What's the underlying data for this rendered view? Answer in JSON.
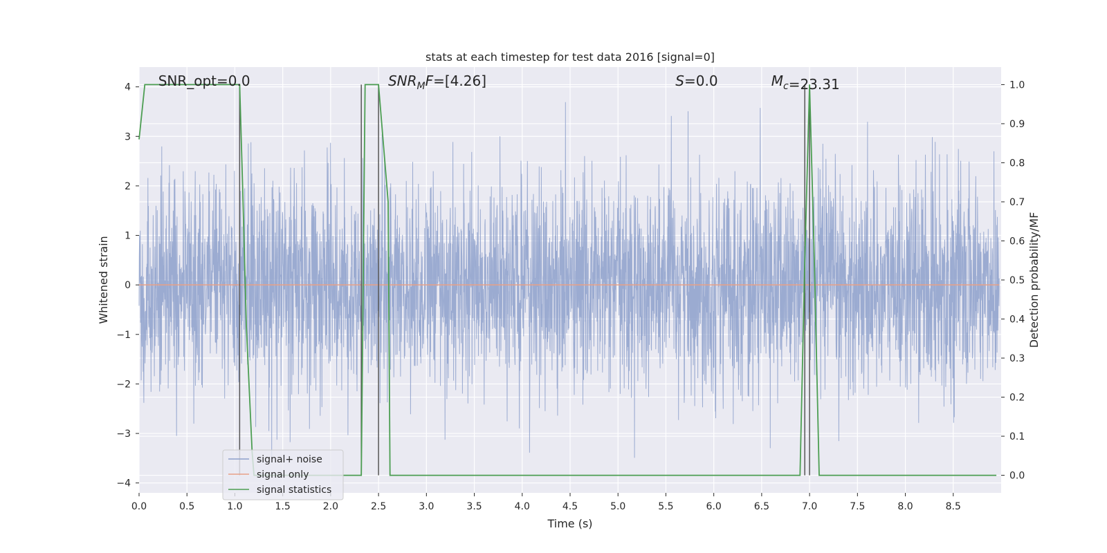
{
  "chart_data": {
    "type": "line",
    "title": "stats at each timestep for test data 2016 [signal=0]",
    "xlabel": "Time (s)",
    "ylabel": "Whitened strain",
    "y2label": "Detection probability/MF",
    "xlim": [
      0.0,
      9.0
    ],
    "ylim": [
      -4.2,
      4.4
    ],
    "y2lim": [
      -0.045,
      1.045
    ],
    "xticks": [
      0.0,
      0.5,
      1.0,
      1.5,
      2.0,
      2.5,
      3.0,
      3.5,
      4.0,
      4.5,
      5.0,
      5.5,
      6.0,
      6.5,
      7.0,
      7.5,
      8.0,
      8.5
    ],
    "yticks": [
      -4,
      -3,
      -2,
      -1,
      0,
      1,
      2,
      3,
      4
    ],
    "y2ticks": [
      0.0,
      0.1,
      0.2,
      0.3,
      0.4,
      0.5,
      0.6,
      0.7,
      0.8,
      0.9,
      1.0
    ],
    "xtick_labels": [
      "0.0",
      "0.5",
      "1.0",
      "1.5",
      "2.0",
      "2.5",
      "3.0",
      "3.5",
      "4.0",
      "4.5",
      "5.0",
      "5.5",
      "6.0",
      "6.5",
      "7.0",
      "7.5",
      "8.0",
      "8.5"
    ],
    "ytick_labels": [
      "−4",
      "−3",
      "−2",
      "−1",
      "0",
      "1",
      "2",
      "3",
      "4"
    ],
    "y2tick_labels": [
      "0.0",
      "0.1",
      "0.2",
      "0.3",
      "0.4",
      "0.5",
      "0.6",
      "0.7",
      "0.8",
      "0.9",
      "1.0"
    ],
    "grid": true,
    "legend_position": "lower-left",
    "series": [
      {
        "name": "signal+ noise",
        "color": "#8da0cb",
        "axis": "left",
        "note": "whitened strain noise, approx. standard normal, sampled 0–9 s",
        "approx_range": [
          -3.6,
          3.9
        ]
      },
      {
        "name": "signal only",
        "color": "#e8a087",
        "axis": "left",
        "values_constant": 0.0
      },
      {
        "name": "signal statistics",
        "color": "#4c9e52",
        "axis": "right",
        "x": [
          0.0,
          0.06,
          0.12,
          0.5,
          1.0,
          1.05,
          1.08,
          1.12,
          1.18,
          1.2,
          2.3,
          2.32,
          2.36,
          2.45,
          2.5,
          2.6,
          2.62,
          6.5,
          6.6,
          6.9,
          6.95,
          7.0,
          7.05,
          7.1,
          7.12,
          8.95
        ],
        "values": [
          0.86,
          1.0,
          1.0,
          1.0,
          1.0,
          1.0,
          0.75,
          0.38,
          0.06,
          0.0,
          0.0,
          0.0,
          1.0,
          1.0,
          1.0,
          0.7,
          0.0,
          0.0,
          0.0,
          0.0,
          0.55,
          1.0,
          0.55,
          0.0,
          0.0,
          0.0
        ]
      }
    ],
    "vertical_lines": [
      {
        "x": 1.05,
        "color": "#555555"
      },
      {
        "x": 2.32,
        "color": "#555555"
      },
      {
        "x": 2.5,
        "color": "#555555"
      },
      {
        "x": 6.95,
        "color": "#555555"
      },
      {
        "x": 7.0,
        "color": "#555555"
      }
    ],
    "annotations": [
      {
        "text": "SNR_opt=0.0",
        "italic_prefix": "",
        "x": 0.2
      },
      {
        "text": "=[4.26]",
        "italic_prefix": "SNR",
        "sub": "M",
        "italic_after_sub": "F",
        "x": 2.6
      },
      {
        "text": "=0.0",
        "italic_prefix": "S",
        "sub": "",
        "italic_after_sub": "",
        "x": 5.6
      },
      {
        "text": "=23.31",
        "italic_prefix": "M",
        "sub": "c",
        "italic_after_sub": "",
        "x": 6.6
      }
    ],
    "colors": {
      "background": "#eaeaf2",
      "grid": "#ffffff"
    }
  }
}
